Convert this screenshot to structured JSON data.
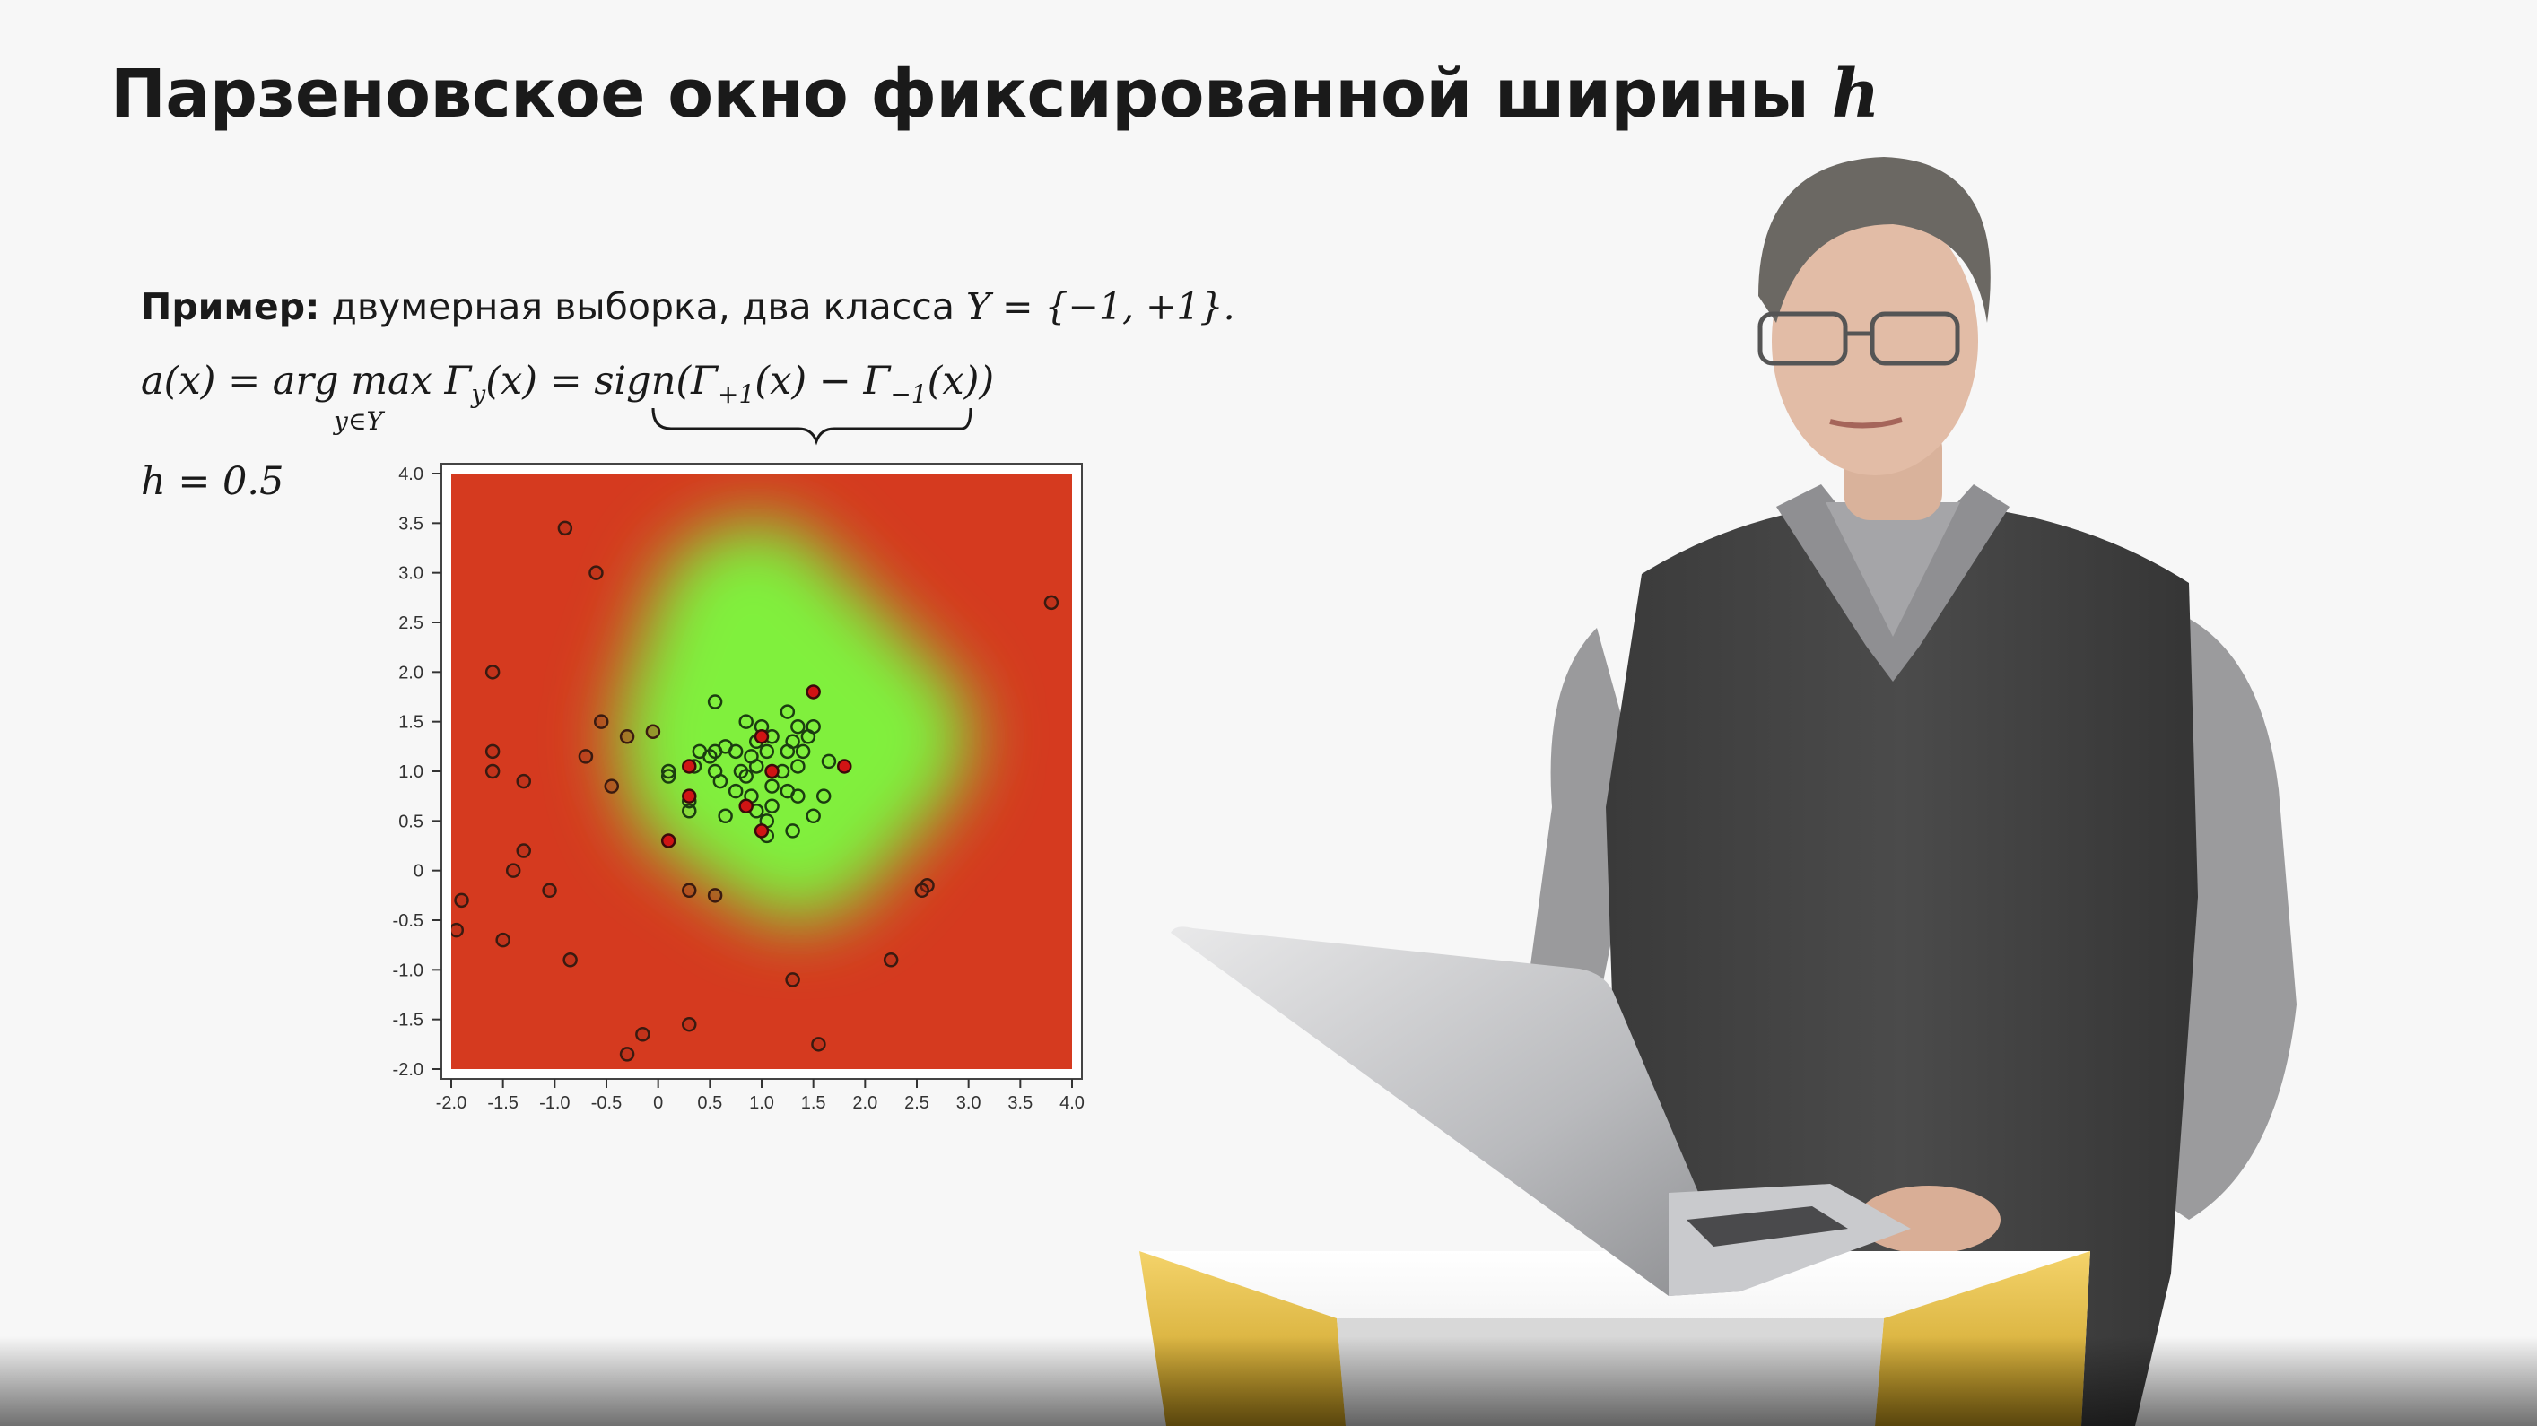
{
  "slide": {
    "title_text": "Парзеновское окно фиксированной ширины ",
    "title_var": "h",
    "example_label": "Пример:",
    "example_text": " двумерная выборка, два класса ",
    "example_math": "Y = {−1, +1}.",
    "formula_left": "a(x) = arg max Γ",
    "formula_sub_y": "y",
    "formula_mid": "(x) = sign(Γ",
    "formula_sub_p": "+1",
    "formula_mid2": "(x) − Γ",
    "formula_sub_m": "−1",
    "formula_end": "(x))",
    "formula_under": "y∈Y",
    "h_label": "h = 0.5"
  },
  "colors": {
    "background": "#f7f7f7",
    "class_minus": "#d53a1f",
    "class_plus": "#7df03c",
    "point_red": "#d01414"
  },
  "chart_data": {
    "type": "scatter",
    "title": "",
    "xlabel": "",
    "ylabel": "",
    "xlim": [
      -2.0,
      4.0
    ],
    "ylim": [
      -2.0,
      4.0
    ],
    "xticks": [
      "-2.0",
      "-1.5",
      "-1.0",
      "-0.5",
      "0",
      "0.5",
      "1.0",
      "1.5",
      "2.0",
      "2.5",
      "3.0",
      "3.5",
      "4.0"
    ],
    "yticks": [
      "-2.0",
      "-1.5",
      "-1.0",
      "-0.5",
      "0",
      "0.5",
      "1.0",
      "1.5",
      "2.0",
      "2.5",
      "3.0",
      "3.5",
      "4.0"
    ],
    "background_regions": "class +1 region (green) around center, class -1 elsewhere (red)",
    "series": [
      {
        "class": "-1",
        "points": [
          [
            -0.9,
            3.45
          ],
          [
            -0.6,
            3.0
          ],
          [
            3.8,
            2.7
          ],
          [
            -1.6,
            2.0
          ],
          [
            -1.6,
            1.2
          ],
          [
            -1.6,
            1.0
          ],
          [
            -1.3,
            0.9
          ],
          [
            -0.55,
            1.5
          ],
          [
            -0.7,
            1.15
          ],
          [
            -0.3,
            1.35
          ],
          [
            -0.05,
            1.4
          ],
          [
            -0.45,
            0.85
          ],
          [
            -1.3,
            0.2
          ],
          [
            -1.4,
            0.0
          ],
          [
            -1.05,
            -0.2
          ],
          [
            -1.9,
            -0.3
          ],
          [
            -1.95,
            -0.6
          ],
          [
            -1.5,
            -0.7
          ],
          [
            -0.85,
            -0.9
          ],
          [
            0.3,
            -0.2
          ],
          [
            0.55,
            -0.25
          ],
          [
            2.6,
            -0.15
          ],
          [
            2.55,
            -0.2
          ],
          [
            2.25,
            -0.9
          ],
          [
            1.3,
            -1.1
          ],
          [
            0.3,
            -1.55
          ],
          [
            -0.15,
            -1.65
          ],
          [
            -0.3,
            -1.85
          ],
          [
            1.55,
            -1.75
          ]
        ]
      },
      {
        "class": "+1",
        "points": [
          [
            0.55,
            1.7
          ],
          [
            1.25,
            1.6
          ],
          [
            1.35,
            1.45
          ],
          [
            0.85,
            1.5
          ],
          [
            1.0,
            1.45
          ],
          [
            1.5,
            1.45
          ],
          [
            0.65,
            1.25
          ],
          [
            0.95,
            1.3
          ],
          [
            1.1,
            1.35
          ],
          [
            1.3,
            1.3
          ],
          [
            1.45,
            1.35
          ],
          [
            0.4,
            1.2
          ],
          [
            0.5,
            1.15
          ],
          [
            0.55,
            1.2
          ],
          [
            0.75,
            1.2
          ],
          [
            0.9,
            1.15
          ],
          [
            1.05,
            1.2
          ],
          [
            1.25,
            1.2
          ],
          [
            1.4,
            1.2
          ],
          [
            1.65,
            1.1
          ],
          [
            0.1,
            1.0
          ],
          [
            0.35,
            1.05
          ],
          [
            0.55,
            1.0
          ],
          [
            0.8,
            1.0
          ],
          [
            0.95,
            1.05
          ],
          [
            1.2,
            1.0
          ],
          [
            1.35,
            1.05
          ],
          [
            0.1,
            0.95
          ],
          [
            0.6,
            0.9
          ],
          [
            0.85,
            0.95
          ],
          [
            1.1,
            0.85
          ],
          [
            0.3,
            0.7
          ],
          [
            0.75,
            0.8
          ],
          [
            0.9,
            0.75
          ],
          [
            1.25,
            0.8
          ],
          [
            1.35,
            0.75
          ],
          [
            1.6,
            0.75
          ],
          [
            0.3,
            0.6
          ],
          [
            0.65,
            0.55
          ],
          [
            1.1,
            0.65
          ],
          [
            0.95,
            0.6
          ],
          [
            1.5,
            0.55
          ],
          [
            1.05,
            0.5
          ],
          [
            1.3,
            0.4
          ],
          [
            1.05,
            0.35
          ]
        ]
      },
      {
        "class": "-1 (inside green region)",
        "points": [
          [
            1.5,
            1.8
          ],
          [
            1.0,
            1.35
          ],
          [
            0.3,
            1.05
          ],
          [
            1.1,
            1.0
          ],
          [
            1.8,
            1.05
          ],
          [
            0.3,
            0.75
          ],
          [
            0.85,
            0.65
          ],
          [
            1.0,
            0.4
          ],
          [
            0.1,
            0.3
          ]
        ]
      }
    ]
  }
}
